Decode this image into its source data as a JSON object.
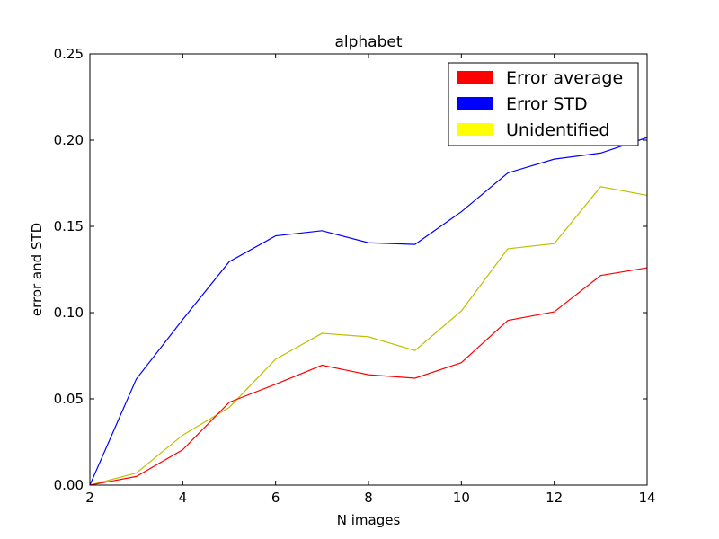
{
  "chart_data": {
    "type": "line",
    "title": "alphabet",
    "xlabel": "N images",
    "ylabel": "error and STD",
    "xlim": [
      2,
      14
    ],
    "ylim": [
      0,
      0.25
    ],
    "xticks": [
      2,
      4,
      6,
      8,
      10,
      12,
      14
    ],
    "xtick_labels": [
      "2",
      "4",
      "6",
      "8",
      "10",
      "12",
      "14"
    ],
    "yticks": [
      0,
      0.05,
      0.1,
      0.15,
      0.2,
      0.25
    ],
    "ytick_labels": [
      "0.00",
      "0.05",
      "0.10",
      "0.15",
      "0.20",
      "0.25"
    ],
    "grid": false,
    "legend_position": "top-right",
    "x": [
      2,
      3,
      4,
      5,
      6,
      7,
      8,
      9,
      10,
      11,
      12,
      13,
      14
    ],
    "series": [
      {
        "name": "Error average",
        "color": "#ff0000",
        "values": [
          0.0,
          0.005,
          0.0205,
          0.048,
          0.0585,
          0.0695,
          0.064,
          0.062,
          0.071,
          0.0955,
          0.1005,
          0.1215,
          0.126
        ]
      },
      {
        "name": "Error STD",
        "color": "#0000ff",
        "values": [
          0.0,
          0.0615,
          0.096,
          0.1295,
          0.1445,
          0.1475,
          0.1405,
          0.1395,
          0.1585,
          0.181,
          0.189,
          0.1925,
          0.2015
        ]
      },
      {
        "name": "Unidentified",
        "color": "#bfbf00",
        "legend_color": "#ffff00",
        "values": [
          0.0,
          0.007,
          0.029,
          0.045,
          0.073,
          0.088,
          0.086,
          0.078,
          0.101,
          0.137,
          0.14,
          0.173,
          0.168
        ]
      }
    ]
  }
}
